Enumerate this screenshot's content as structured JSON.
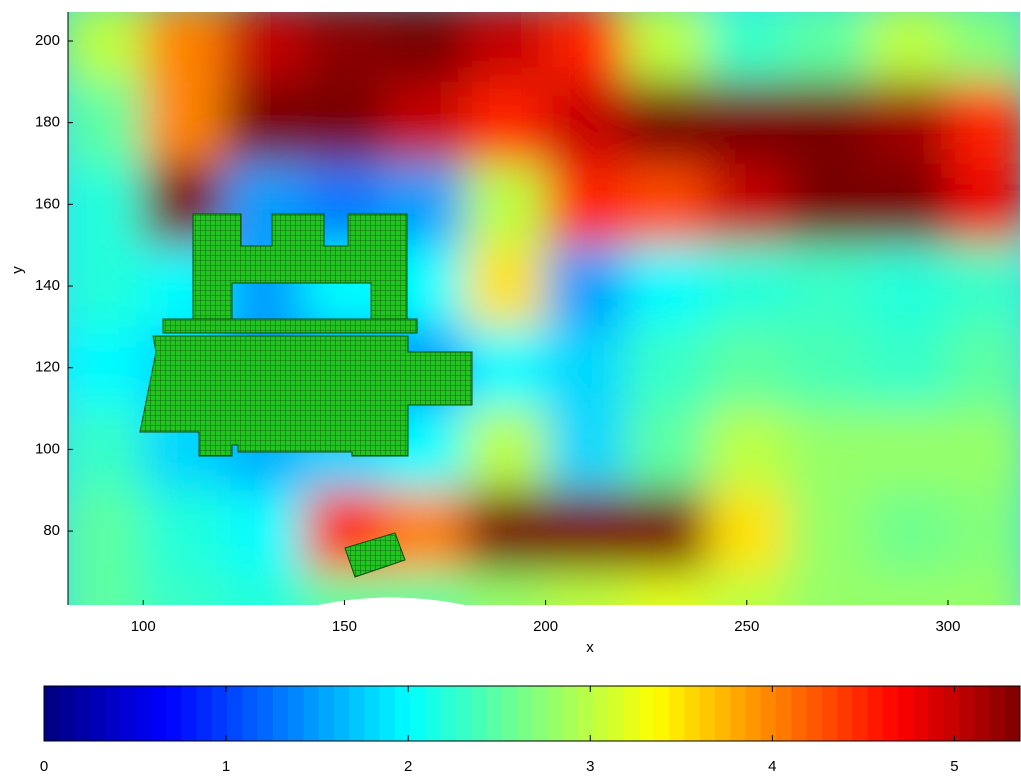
{
  "chart_data": {
    "type": "heatmap",
    "x_label": "x",
    "y_label": "y",
    "xlim": [
      81.3,
      317.9
    ],
    "ylim": [
      61.9,
      207.1
    ],
    "xticks": [
      100,
      150,
      200,
      250,
      300
    ],
    "yticks": [
      80,
      100,
      120,
      140,
      160,
      180,
      200
    ],
    "colormap": "jet",
    "clim": [
      0,
      5.36
    ],
    "cticks": [
      0,
      1,
      2,
      3,
      4,
      5
    ],
    "x": [
      90,
      110,
      130,
      150,
      170,
      190,
      210,
      230,
      250,
      270,
      290,
      310
    ],
    "y": [
      200,
      180,
      160,
      140,
      120,
      100,
      80,
      60
    ],
    "z": [
      [
        3.0,
        4.0,
        5.0,
        5.3,
        5.4,
        5.0,
        4.5,
        3.0,
        2.3,
        2.5,
        3.0,
        2.7
      ],
      [
        2.5,
        4.0,
        5.4,
        5.4,
        5.0,
        4.5,
        5.0,
        5.4,
        5.4,
        5.4,
        5.2,
        4.5
      ],
      [
        2.2,
        5.4,
        1.5,
        1.3,
        1.5,
        3.0,
        4.5,
        4.3,
        5.0,
        5.4,
        5.4,
        4.8
      ],
      [
        2.2,
        2.0,
        1.5,
        2.0,
        2.0,
        3.5,
        1.5,
        2.0,
        2.2,
        2.3,
        2.2,
        2.3
      ],
      [
        2.0,
        1.8,
        1.5,
        1.5,
        1.5,
        2.0,
        1.8,
        2.3,
        2.5,
        2.4,
        2.3,
        2.5
      ],
      [
        2.3,
        1.8,
        1.6,
        1.8,
        2.0,
        3.0,
        1.8,
        2.5,
        3.0,
        2.8,
        2.8,
        2.8
      ],
      [
        2.5,
        2.2,
        2.0,
        4.5,
        4.0,
        5.4,
        5.4,
        5.4,
        3.5,
        2.8,
        2.6,
        2.7
      ],
      [
        2.5,
        2.3,
        2.2,
        2.5,
        2.5,
        2.8,
        3.0,
        3.2,
        3.0,
        2.8,
        2.8,
        2.8
      ]
    ]
  }
}
